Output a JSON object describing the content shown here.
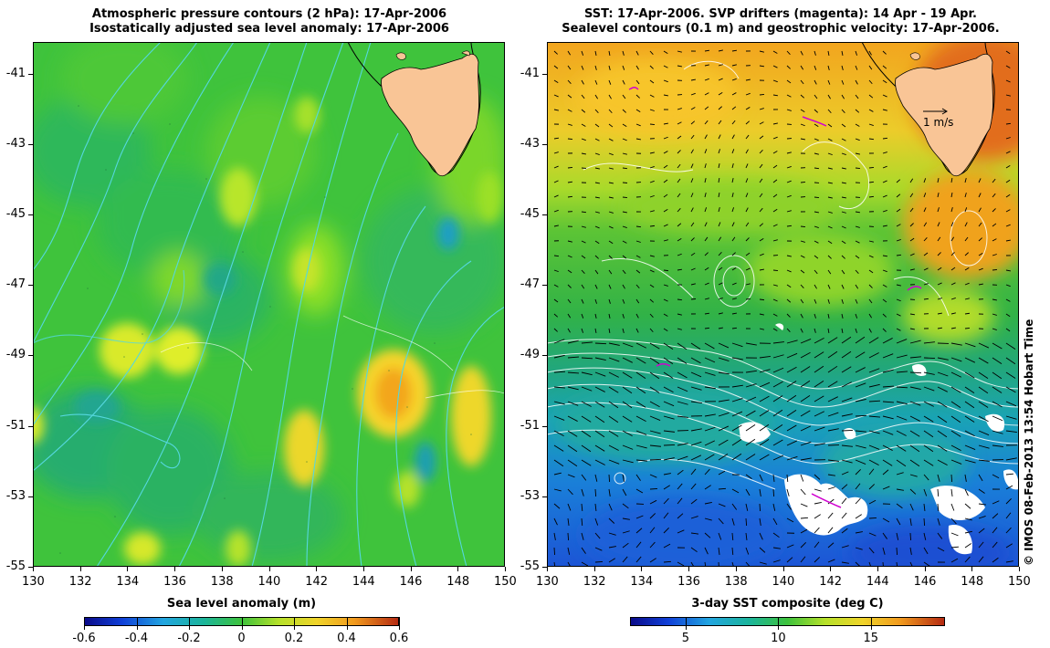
{
  "left_panel": {
    "title_line1": "Atmospheric pressure contours (2 hPa): 17-Apr-2006",
    "title_line2": "Isostatically adjusted sea level anomaly: 17-Apr-2006",
    "colorbar_label": "Sea level anomaly (m)",
    "colorbar_ticks": [
      "-0.6",
      "-0.4",
      "-0.2",
      "0",
      "0.2",
      "0.4",
      "0.6"
    ]
  },
  "right_panel": {
    "title_line1": "SST: 17-Apr-2006. SVP drifters (magenta): 14 Apr - 19 Apr.",
    "title_line2": "Sealevel contours (0.1 m) and geostrophic velocity: 17-Apr-2006.",
    "colorbar_label": "3-day SST composite (deg C)",
    "colorbar_ticks": [
      "5",
      "10",
      "15"
    ],
    "velocity_scale_label": "1 m/s"
  },
  "axes": {
    "x_ticks": [
      "130",
      "132",
      "134",
      "136",
      "138",
      "140",
      "142",
      "144",
      "146",
      "148",
      "150"
    ],
    "y_ticks": [
      "-41",
      "-43",
      "-45",
      "-47",
      "-49",
      "-51",
      "-53",
      "-55"
    ],
    "x_range": [
      130,
      150
    ],
    "y_range": [
      -55,
      -40.1
    ]
  },
  "credit": "© IMOS 08-Feb-2013 13:54 Hobart Time",
  "colors": {
    "land": "#f9c596",
    "coast": "#000000",
    "pressure_contours": "#55d7de",
    "sealevel_contours": "#ffffff",
    "drifters": "#d000d0"
  }
}
